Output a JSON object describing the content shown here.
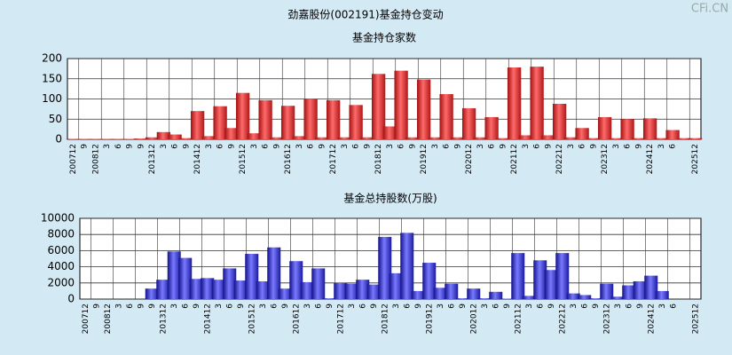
{
  "title": "劲嘉股份(002191)基金持仓变动",
  "watermark": "CFi.CN",
  "chart_data": [
    {
      "type": "bar",
      "title": "基金持仓家数",
      "color": "#e03030",
      "ylim": [
        0,
        200
      ],
      "yticks": [
        0,
        50,
        100,
        150,
        200
      ],
      "grid": true,
      "categories": [
        "200712",
        "9",
        "200812",
        "3",
        "6",
        "9",
        "9",
        "201312",
        "3",
        "6",
        "9",
        "201412",
        "3",
        "6",
        "9",
        "201512",
        "3",
        "6",
        "9",
        "201612",
        "3",
        "6",
        "9",
        "201712",
        "3",
        "6",
        "9",
        "201812",
        "3",
        "6",
        "9",
        "201912",
        "3",
        "6",
        "9",
        "202012",
        "3",
        "6",
        "9",
        "202112",
        "3",
        "6",
        "9",
        "202212",
        "3",
        "6",
        "9",
        "202312",
        "3",
        "6",
        "9",
        "202412",
        "3",
        "6",
        null,
        "202512"
      ],
      "values": [
        1,
        1,
        1,
        1,
        1,
        1,
        2,
        5,
        18,
        12,
        3,
        70,
        8,
        82,
        28,
        115,
        15,
        97,
        5,
        83,
        8,
        100,
        5,
        97,
        5,
        85,
        5,
        162,
        32,
        170,
        5,
        148,
        5,
        112,
        5,
        77,
        5,
        55,
        3,
        178,
        10,
        180,
        10,
        88,
        5,
        28,
        3,
        55,
        3,
        50,
        3,
        52,
        3,
        23,
        3,
        3
      ]
    },
    {
      "type": "bar",
      "title": "基金总持股数(万股)",
      "color": "#3636d8",
      "ylim": [
        0,
        10000
      ],
      "yticks": [
        0,
        2000,
        4000,
        6000,
        8000,
        10000
      ],
      "grid": true,
      "categories": [
        "200712",
        "9",
        "200812",
        "3",
        "6",
        "9",
        "9",
        "201312",
        "3",
        "6",
        "9",
        "201412",
        "3",
        "6",
        "9",
        "201512",
        "3",
        "6",
        "9",
        "201612",
        "3",
        "6",
        "9",
        "201712",
        "3",
        "6",
        "9",
        "201812",
        "3",
        "6",
        "9",
        "201912",
        "3",
        "6",
        "9",
        "202012",
        "3",
        "6",
        "9",
        "202112",
        "3",
        "6",
        "9",
        "202212",
        "3",
        "6",
        "9",
        "202312",
        "3",
        "6",
        "9",
        "202412",
        "3",
        "6",
        null,
        "202512"
      ],
      "values": [
        0,
        0,
        0,
        0,
        0,
        0,
        1300,
        2400,
        5900,
        5100,
        2500,
        2600,
        2400,
        3800,
        2300,
        5600,
        2200,
        6400,
        1300,
        4700,
        2100,
        3800,
        100,
        2000,
        1900,
        2400,
        1800,
        7700,
        3200,
        8200,
        1000,
        4500,
        1400,
        1900,
        100,
        1300,
        100,
        900,
        50,
        5700,
        400,
        4800,
        3600,
        5700,
        700,
        500,
        100,
        1900,
        300,
        1700,
        2200,
        2900,
        1000,
        0,
        0,
        0
      ]
    }
  ]
}
